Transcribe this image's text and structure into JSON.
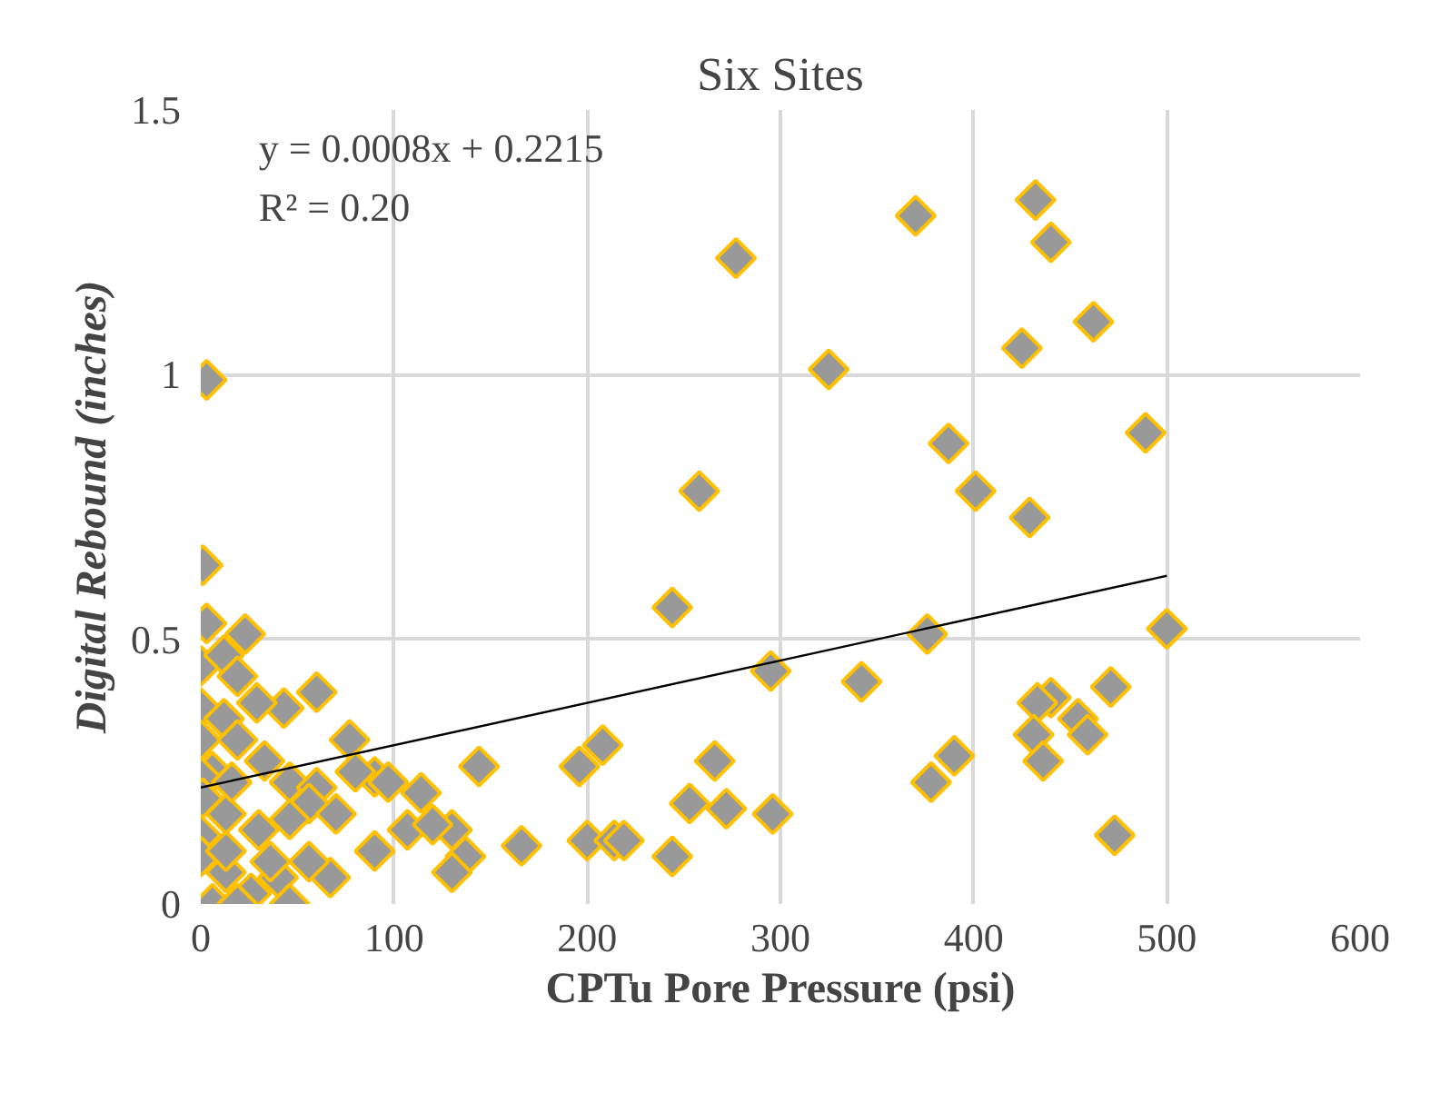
{
  "chart_data": {
    "type": "scatter",
    "title": "Six Sites",
    "xlabel": "CPTu Pore Pressure (psi)",
    "ylabel": "Digital Rebound (inches)",
    "annotations": [
      "y = 0.0008x + 0.2215",
      "R² = 0.20"
    ],
    "xlim": [
      0,
      600
    ],
    "xticks": [
      0,
      100,
      200,
      300,
      400,
      500,
      600
    ],
    "ylim": [
      0,
      1.5
    ],
    "yticks": [
      0,
      0.5,
      1,
      1.5
    ],
    "grid": true,
    "series": [
      {
        "color": "#999999",
        "marker": "diamond",
        "x": [
          277,
          325,
          258,
          244,
          295,
          342,
          144,
          196,
          208,
          266,
          253,
          272,
          296,
          166,
          200,
          214,
          219,
          244,
          370,
          432,
          440,
          462,
          425,
          489,
          387,
          401,
          429,
          376,
          500,
          471,
          440,
          433,
          454,
          459,
          431,
          436,
          390,
          378,
          473,
          3,
          1,
          3,
          23,
          0,
          12,
          19,
          60,
          43,
          29,
          0,
          12,
          77,
          0,
          19,
          6,
          0,
          33,
          46,
          60,
          90,
          97,
          80,
          56,
          70,
          13,
          114,
          30,
          90,
          107,
          130,
          120,
          137,
          130,
          13,
          0,
          67,
          40,
          26,
          46,
          6,
          19,
          0,
          1,
          46,
          16,
          13,
          36,
          56
        ],
        "values": [
          1.22,
          1.01,
          0.78,
          0.56,
          0.44,
          0.42,
          0.26,
          0.26,
          0.3,
          0.27,
          0.19,
          0.18,
          0.17,
          0.11,
          0.12,
          0.12,
          0.12,
          0.09,
          1.3,
          1.33,
          1.25,
          1.1,
          1.05,
          0.89,
          0.87,
          0.78,
          0.73,
          0.51,
          0.52,
          0.41,
          0.39,
          0.38,
          0.35,
          0.32,
          0.32,
          0.27,
          0.28,
          0.23,
          0.13,
          0.99,
          0.64,
          0.53,
          0.51,
          0.45,
          0.47,
          0.43,
          0.4,
          0.37,
          0.38,
          0.37,
          0.35,
          0.31,
          0.31,
          0.31,
          0.25,
          0.24,
          0.27,
          0.23,
          0.22,
          0.24,
          0.23,
          0.25,
          0.19,
          0.17,
          0.17,
          0.21,
          0.14,
          0.1,
          0.14,
          0.14,
          0.15,
          0.09,
          0.06,
          0.06,
          0.13,
          0.05,
          0.05,
          0.02,
          0,
          0,
          0,
          0.09,
          0.2,
          0.16,
          0.23,
          0.1,
          0.08,
          0.08
        ]
      },
      {
        "type": "line",
        "color": "#000000",
        "marker": "none",
        "x": [
          0,
          500
        ],
        "values": [
          0.22,
          0.62
        ]
      }
    ]
  }
}
